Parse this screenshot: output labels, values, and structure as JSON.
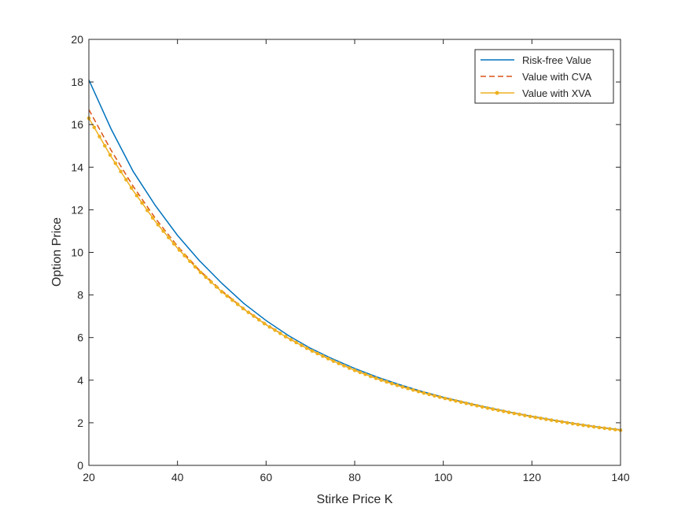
{
  "chart_data": {
    "type": "line",
    "title": "",
    "xlabel": "Stirke Price K",
    "ylabel": "Option Price",
    "xlim": [
      20,
      140
    ],
    "ylim": [
      0,
      20
    ],
    "xticks": [
      20,
      40,
      60,
      80,
      100,
      120,
      140
    ],
    "yticks": [
      0,
      2,
      4,
      6,
      8,
      10,
      12,
      14,
      16,
      18,
      20
    ],
    "grid": false,
    "legend_position": "top-right",
    "x": [
      20,
      25,
      30,
      35,
      40,
      45,
      50,
      55,
      60,
      65,
      70,
      75,
      80,
      85,
      90,
      95,
      100,
      105,
      110,
      115,
      120,
      125,
      130,
      135,
      140
    ],
    "series": [
      {
        "name": "Risk-free Value",
        "color": "#0072BD",
        "style": "solid",
        "values": [
          18.1,
          15.8,
          13.8,
          12.2,
          10.8,
          9.6,
          8.55,
          7.6,
          6.8,
          6.1,
          5.5,
          5.0,
          4.55,
          4.15,
          3.8,
          3.48,
          3.2,
          2.95,
          2.72,
          2.5,
          2.3,
          2.12,
          1.95,
          1.8,
          1.67
        ]
      },
      {
        "name": "Value with CVA",
        "color": "#D95319",
        "style": "dashed",
        "values": [
          16.7,
          14.8,
          13.1,
          11.6,
          10.3,
          9.15,
          8.2,
          7.35,
          6.62,
          5.98,
          5.42,
          4.92,
          4.47,
          4.08,
          3.74,
          3.44,
          3.17,
          2.93,
          2.7,
          2.49,
          2.29,
          2.11,
          1.94,
          1.79,
          1.66
        ]
      },
      {
        "name": "Value with XVA",
        "color": "#EDB120",
        "style": "solid-dots",
        "values": [
          16.3,
          14.5,
          12.9,
          11.45,
          10.2,
          9.1,
          8.15,
          7.33,
          6.6,
          5.97,
          5.41,
          4.91,
          4.46,
          4.07,
          3.73,
          3.43,
          3.16,
          2.92,
          2.69,
          2.48,
          2.28,
          2.1,
          1.93,
          1.78,
          1.65
        ]
      }
    ]
  }
}
